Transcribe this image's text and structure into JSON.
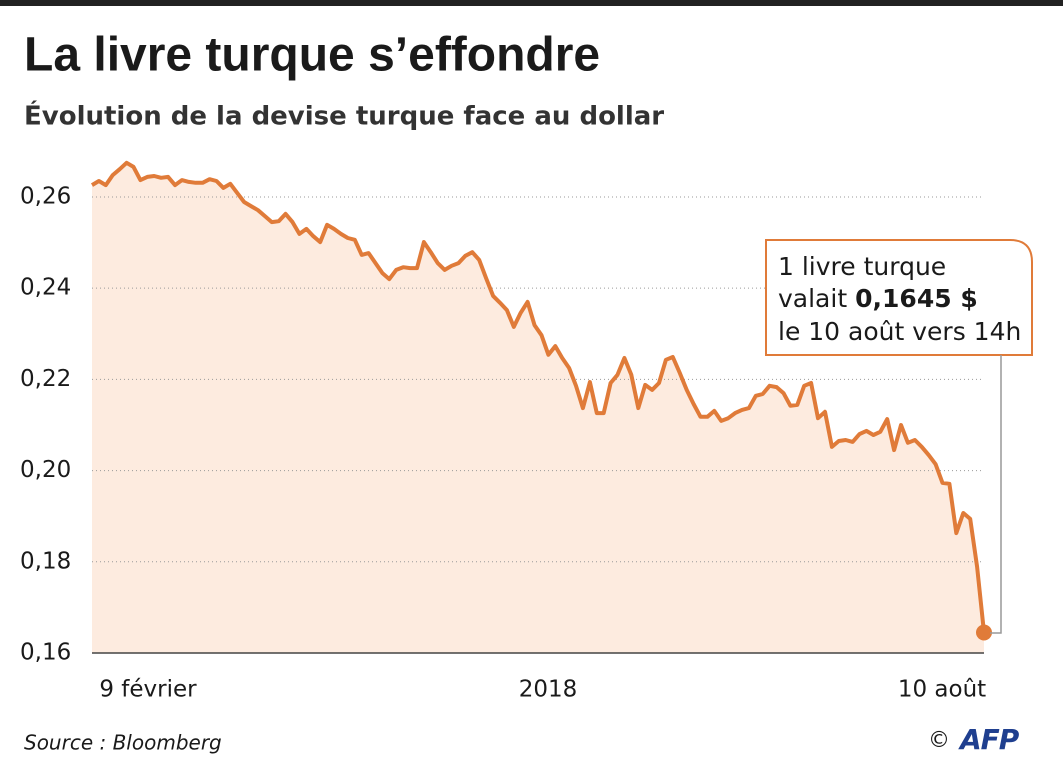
{
  "chart_data": {
    "type": "line",
    "title": "La livre turque s’effondre",
    "subtitle": "Évolution de la devise turque face au dollar",
    "xlabel": "2018",
    "source": "Source : Bloomberg",
    "credit": "©",
    "logo": "AFP",
    "color": "#e07b39",
    "fill": "#fdebdf",
    "grid": true,
    "ylim": [
      0.16,
      0.268
    ],
    "yticks": [
      {
        "value": 0.16,
        "label": "0,16"
      },
      {
        "value": 0.18,
        "label": "0,18"
      },
      {
        "value": 0.2,
        "label": "0,20"
      },
      {
        "value": 0.22,
        "label": "0,22"
      },
      {
        "value": 0.24,
        "label": "0,24"
      },
      {
        "value": 0.26,
        "label": "0,26"
      }
    ],
    "annotation": {
      "line1": "1 livre turque",
      "line2": "valait",
      "value_label": "0,1645 $",
      "line3": "le 10 août vers 14h"
    },
    "categories": [
      "9 février",
      null,
      null,
      null,
      null,
      null,
      null,
      null,
      null,
      null,
      null,
      null,
      null,
      null,
      null,
      null,
      null,
      null,
      null,
      null,
      null,
      null,
      null,
      null,
      null,
      null,
      null,
      null,
      null,
      null,
      null,
      null,
      null,
      null,
      null,
      null,
      null,
      null,
      null,
      null,
      null,
      null,
      null,
      null,
      null,
      null,
      null,
      null,
      null,
      null,
      null,
      null,
      null,
      null,
      null,
      null,
      null,
      null,
      null,
      null,
      null,
      null,
      null,
      null,
      null,
      null,
      null,
      null,
      null,
      null,
      null,
      null,
      null,
      null,
      null,
      null,
      null,
      null,
      null,
      null,
      null,
      null,
      null,
      null,
      null,
      null,
      null,
      null,
      null,
      null,
      null,
      null,
      null,
      null,
      null,
      null,
      null,
      null,
      null,
      null,
      null,
      null,
      null,
      null,
      null,
      null,
      null,
      null,
      null,
      null,
      null,
      null,
      null,
      null,
      null,
      null,
      null,
      null,
      null,
      null,
      null,
      null,
      null,
      null,
      null,
      null,
      null,
      null,
      null,
      "10 août"
    ],
    "values": [
      0.2626,
      0.2635,
      0.2626,
      0.2648,
      0.2661,
      0.2675,
      0.2666,
      0.2637,
      0.2644,
      0.2646,
      0.2642,
      0.2644,
      0.2626,
      0.2637,
      0.2633,
      0.2631,
      0.2631,
      0.2639,
      0.2635,
      0.262,
      0.2629,
      0.2609,
      0.2589,
      0.258,
      0.2571,
      0.2558,
      0.2545,
      0.2547,
      0.2563,
      0.2545,
      0.2519,
      0.253,
      0.2514,
      0.2501,
      0.2539,
      0.253,
      0.2519,
      0.251,
      0.2506,
      0.2473,
      0.2477,
      0.2455,
      0.2433,
      0.242,
      0.244,
      0.2446,
      0.2444,
      0.2444,
      0.2501,
      0.2479,
      0.2455,
      0.244,
      0.2449,
      0.2455,
      0.2471,
      0.2479,
      0.2462,
      0.2422,
      0.2383,
      0.2368,
      0.2352,
      0.2315,
      0.2346,
      0.237,
      0.2319,
      0.2297,
      0.2254,
      0.2273,
      0.2247,
      0.2225,
      0.2186,
      0.2137,
      0.2194,
      0.2126,
      0.2126,
      0.2192,
      0.221,
      0.2247,
      0.221,
      0.2137,
      0.2188,
      0.2177,
      0.2192,
      0.2243,
      0.2249,
      0.2214,
      0.2177,
      0.2146,
      0.2118,
      0.2118,
      0.2131,
      0.2109,
      0.2115,
      0.2126,
      0.2133,
      0.2137,
      0.2164,
      0.2168,
      0.2186,
      0.2183,
      0.217,
      0.2142,
      0.2144,
      0.2186,
      0.2192,
      0.2115,
      0.2129,
      0.2052,
      0.2065,
      0.2067,
      0.2063,
      0.208,
      0.2087,
      0.2078,
      0.2085,
      0.2113,
      0.2045,
      0.21,
      0.2061,
      0.2067,
      0.2052,
      0.2034,
      0.2014,
      0.1973,
      0.1971,
      0.1863,
      0.1907,
      0.1894,
      0.1789,
      0.1645
    ]
  }
}
